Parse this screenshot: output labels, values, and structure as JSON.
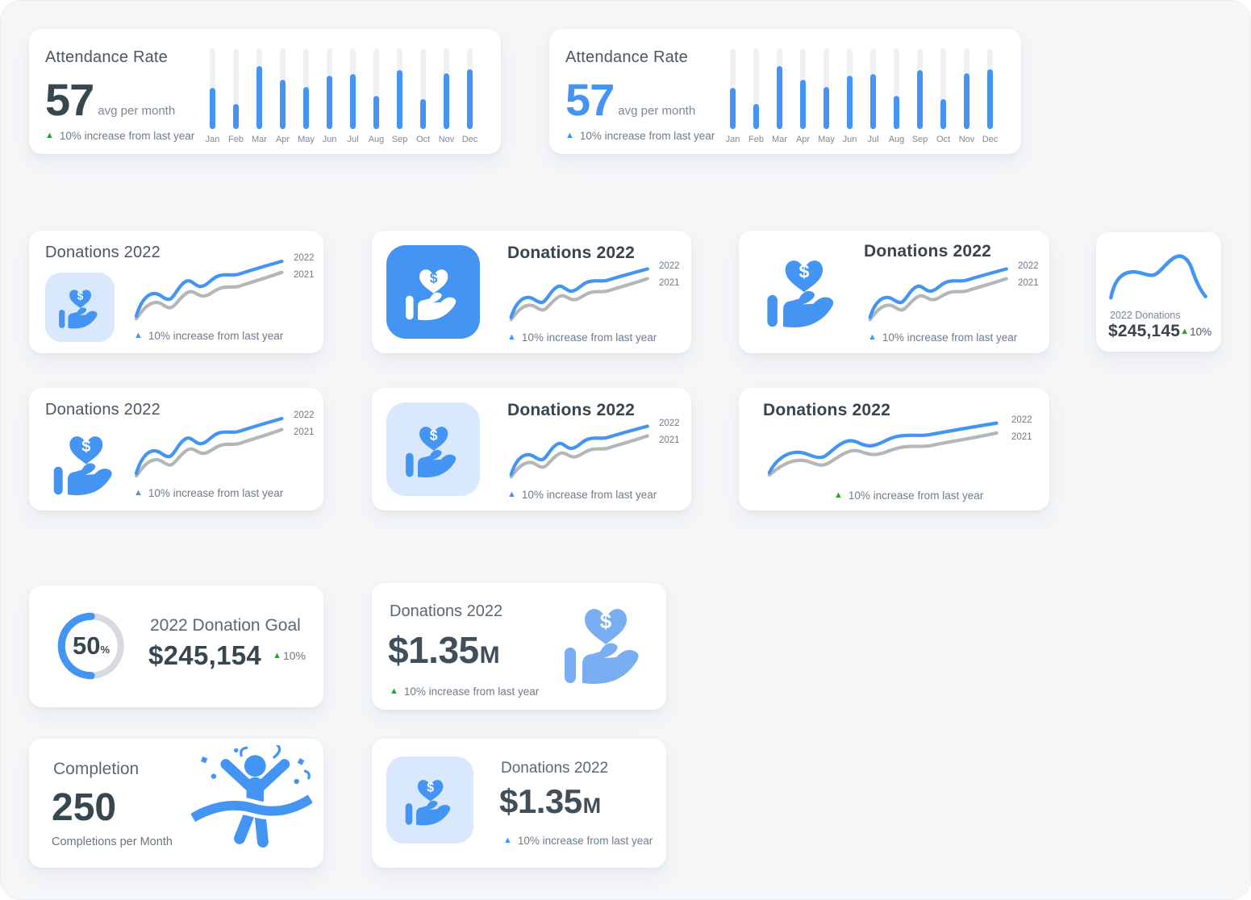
{
  "page": {
    "background": "#f4f6f8"
  },
  "colors": {
    "accent_blue": "#4495f3",
    "soft_blue": "#7aaef3",
    "light_blue_bg": "#d9e8fc",
    "gray_line": "#b4b7ba",
    "bar_track": "#eff1f4",
    "text_dark": "#37474f",
    "text_muted": "#6e7b87",
    "green": "#21a72f",
    "donut_track": "#d7dbdf"
  },
  "icons": {
    "dollar": "$",
    "triangle_up": "▲"
  },
  "attendance": {
    "title": "Attendance Rate",
    "value": "57",
    "unit": "avg per month",
    "delta": "10% increase from last year",
    "months": [
      "Jan",
      "Feb",
      "Mar",
      "Apr",
      "May",
      "Jun",
      "Jul",
      "Aug",
      "Sep",
      "Oct",
      "Nov",
      "Dec"
    ],
    "values_pct": [
      51,
      31,
      78,
      61,
      52,
      66,
      68,
      41,
      73,
      37,
      69,
      74
    ]
  },
  "donations": {
    "title": "Donations 2022",
    "delta": "10% increase from last year",
    "legend_2022": "2022",
    "legend_2021": "2021"
  },
  "mini": {
    "label": "2022 Donations",
    "value": "$245,145",
    "delta": "10%"
  },
  "goal": {
    "percent": "50",
    "percent_sign": "%",
    "label": "2022 Donation Goal",
    "value": "$245,154",
    "delta": "10%"
  },
  "big_donation": {
    "title": "Donations 2022",
    "value": "$1.35",
    "suffix": "M",
    "delta": "10% increase from last year"
  },
  "completion": {
    "title": "Completion",
    "value": "250",
    "label": "Completions per Month"
  },
  "chart_data": [
    {
      "type": "bar",
      "title": "Attendance Rate",
      "categories": [
        "Jan",
        "Feb",
        "Mar",
        "Apr",
        "May",
        "Jun",
        "Jul",
        "Aug",
        "Sep",
        "Oct",
        "Nov",
        "Dec"
      ],
      "values": [
        51,
        31,
        78,
        61,
        52,
        66,
        68,
        41,
        73,
        37,
        69,
        74
      ],
      "value_scale": "percent of tallest gridless track (no numeric axis shown)",
      "xlabel": "",
      "ylabel": "",
      "grid": false,
      "appears_in": "both Attendance Rate cards (identical bars)"
    },
    {
      "type": "line",
      "title": "Donations 2022",
      "series": [
        {
          "name": "2022",
          "normalized_0_100": [
            10,
            42,
            38,
            36,
            60,
            57,
            70,
            66,
            73,
            76,
            80,
            84,
            90,
            100
          ]
        },
        {
          "name": "2021",
          "normalized_0_100": [
            6,
            26,
            23,
            21,
            45,
            41,
            55,
            50,
            57,
            60,
            64,
            68,
            74,
            84
          ]
        }
      ],
      "legend_position": "right",
      "axes_shown": false,
      "appears_in": "all six Donations 2022 line-chart cards (same curves)"
    },
    {
      "type": "line",
      "title": "2022 Donations (mini sparkline)",
      "series": [
        {
          "name": "2022",
          "normalized_0_100": [
            15,
            55,
            57,
            52,
            80,
            100,
            75,
            30,
            18
          ]
        }
      ],
      "value_label": "$245,145",
      "delta": "+10%",
      "axes_shown": false
    },
    {
      "type": "donut",
      "title": "2022 Donation Goal",
      "percent": 50,
      "value": "$245,154",
      "delta": "+10%",
      "filled_side": "left half, rounded caps"
    }
  ]
}
